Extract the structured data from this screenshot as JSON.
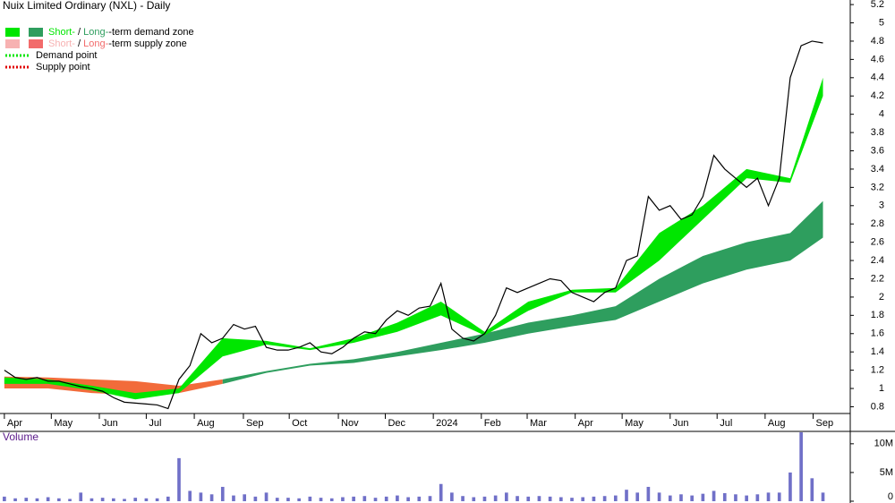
{
  "chart_data": [
    {
      "type": "price",
      "title": "Nuix Limited Ordinary (NXL) - Daily",
      "legend": [
        {
          "parts": [
            "Short-",
            " / ",
            "Long-",
            "-term demand zone"
          ],
          "colors": [
            "#00e600",
            "#2e9e5e"
          ]
        },
        {
          "parts": [
            "Short-",
            " / ",
            "Long-",
            "-term supply zone"
          ],
          "colors": [
            "#f7b2b2",
            "#f26b6b"
          ]
        },
        {
          "parts": [
            "Demand point"
          ],
          "colors": [
            "#00e600"
          ]
        },
        {
          "parts": [
            "Supply point"
          ],
          "colors": [
            "#e00000"
          ]
        }
      ],
      "x": [
        0,
        1,
        2,
        3,
        4,
        5,
        6,
        7,
        8,
        9,
        10,
        11,
        12,
        13,
        14,
        15,
        16,
        17,
        18,
        19,
        20,
        21,
        22,
        23,
        24,
        25,
        26,
        27,
        28,
        29,
        30,
        31,
        32,
        33,
        34,
        35,
        36,
        37,
        38,
        39,
        40,
        41,
        42,
        43,
        44,
        45,
        46,
        47,
        48,
        49,
        50,
        51,
        52,
        53,
        54,
        55,
        56,
        57,
        58,
        59,
        60,
        61,
        62,
        63,
        64,
        65,
        66,
        67,
        68,
        69,
        70,
        71,
        72,
        73,
        74,
        75
      ],
      "series": [
        {
          "name": "NXL",
          "color": "#000000",
          "values": [
            1.2,
            1.12,
            1.1,
            1.12,
            1.08,
            1.08,
            1.05,
            1.02,
            1.0,
            0.97,
            0.9,
            0.85,
            0.84,
            0.83,
            0.82,
            0.78,
            1.1,
            1.25,
            1.6,
            1.5,
            1.55,
            1.7,
            1.65,
            1.68,
            1.45,
            1.42,
            1.42,
            1.45,
            1.5,
            1.4,
            1.38,
            1.45,
            1.55,
            1.62,
            1.6,
            1.75,
            1.85,
            1.8,
            1.88,
            1.9,
            2.15,
            1.65,
            1.55,
            1.52,
            1.6,
            1.8,
            2.1,
            2.05,
            2.1,
            2.15,
            2.2,
            2.18,
            2.05,
            2.0,
            1.95,
            2.05,
            2.1,
            2.4,
            2.45,
            3.1,
            2.95,
            3.0,
            2.85,
            2.9,
            3.1,
            3.55,
            3.4,
            3.3,
            3.2,
            3.3,
            3.0,
            3.3,
            4.4,
            4.75,
            4.8,
            4.78
          ]
        }
      ],
      "zone_x": [
        0,
        4,
        8,
        12,
        16,
        20,
        24,
        28,
        32,
        36,
        40,
        44,
        48,
        52,
        56,
        60,
        64,
        68,
        72,
        75
      ],
      "zones": [
        {
          "color": "#f26b3a",
          "lower": [
            1.0,
            1.0,
            0.95,
            0.93,
            0.95,
            1.05,
            null,
            null,
            null,
            null,
            null,
            null,
            null,
            null,
            null,
            null,
            null,
            null,
            null,
            null
          ],
          "upper": [
            1.13,
            1.12,
            1.1,
            1.08,
            1.03,
            1.1,
            null,
            null,
            null,
            null,
            null,
            null,
            null,
            null,
            null,
            null,
            null,
            null,
            null,
            null
          ]
        },
        {
          "color": "#2e9e5e",
          "lower": [
            null,
            null,
            null,
            null,
            null,
            1.05,
            1.17,
            1.25,
            1.28,
            1.35,
            1.42,
            1.5,
            1.6,
            1.68,
            1.75,
            1.95,
            2.15,
            2.3,
            2.4,
            2.65
          ],
          "upper": [
            null,
            null,
            null,
            null,
            null,
            1.1,
            1.19,
            1.27,
            1.32,
            1.4,
            1.5,
            1.6,
            1.72,
            1.8,
            1.9,
            2.2,
            2.45,
            2.6,
            2.7,
            3.05
          ]
        },
        {
          "color": "#00e600",
          "lower": [
            1.05,
            1.05,
            0.98,
            0.88,
            0.95,
            1.35,
            1.48,
            1.42,
            1.5,
            1.62,
            1.8,
            1.58,
            1.85,
            2.05,
            2.05,
            2.4,
            2.85,
            3.3,
            3.25,
            4.2
          ],
          "upper": [
            1.12,
            1.1,
            1.03,
            0.95,
            1.0,
            1.55,
            1.52,
            1.44,
            1.55,
            1.72,
            1.95,
            1.62,
            1.95,
            2.08,
            2.1,
            2.7,
            3.0,
            3.4,
            3.3,
            4.4
          ]
        }
      ],
      "xlim": [
        -0.4,
        77.5
      ],
      "xticks": [
        {
          "value": 0,
          "label": "Apr"
        },
        {
          "value": 4.3,
          "label": "May"
        },
        {
          "value": 8.7,
          "label": "Jun"
        },
        {
          "value": 13,
          "label": "Jul"
        },
        {
          "value": 17.4,
          "label": "Aug"
        },
        {
          "value": 21.9,
          "label": "Sep"
        },
        {
          "value": 26.1,
          "label": "Oct"
        },
        {
          "value": 30.6,
          "label": "Nov"
        },
        {
          "value": 34.9,
          "label": "Dec"
        },
        {
          "value": 39.3,
          "label": "2024"
        },
        {
          "value": 43.7,
          "label": "Feb"
        },
        {
          "value": 47.9,
          "label": "Mar"
        },
        {
          "value": 52.3,
          "label": "Apr"
        },
        {
          "value": 56.6,
          "label": "May"
        },
        {
          "value": 61,
          "label": "Jun"
        },
        {
          "value": 65.3,
          "label": "Jul"
        },
        {
          "value": 69.7,
          "label": "Aug"
        },
        {
          "value": 74.1,
          "label": "Sep"
        }
      ],
      "ylim": [
        0.55,
        5.25
      ],
      "yticks": [
        0.8,
        1.0,
        1.2,
        1.4,
        1.6,
        1.8,
        2.0,
        2.2,
        2.4,
        2.6,
        2.8,
        3.0,
        3.2,
        3.4,
        3.6,
        3.8,
        4.0,
        4.2,
        4.4,
        4.6,
        4.8,
        5.0,
        5.2
      ]
    },
    {
      "type": "bar",
      "title": "Volume",
      "color": "#7070c8",
      "x": [
        0,
        1,
        2,
        3,
        4,
        5,
        6,
        7,
        8,
        9,
        10,
        11,
        12,
        13,
        14,
        15,
        16,
        17,
        18,
        19,
        20,
        21,
        22,
        23,
        24,
        25,
        26,
        27,
        28,
        29,
        30,
        31,
        32,
        33,
        34,
        35,
        36,
        37,
        38,
        39,
        40,
        41,
        42,
        43,
        44,
        45,
        46,
        47,
        48,
        49,
        50,
        51,
        52,
        53,
        54,
        55,
        56,
        57,
        58,
        59,
        60,
        61,
        62,
        63,
        64,
        65,
        66,
        67,
        68,
        69,
        70,
        71,
        72,
        73,
        74,
        75
      ],
      "values": [
        0.8,
        0.5,
        0.6,
        0.5,
        0.7,
        0.5,
        0.4,
        1.5,
        0.5,
        0.6,
        0.5,
        0.4,
        0.6,
        0.5,
        0.5,
        0.8,
        7.5,
        1.8,
        1.5,
        1.2,
        2.5,
        1.0,
        1.2,
        0.8,
        1.5,
        0.6,
        0.6,
        0.5,
        0.8,
        0.6,
        0.5,
        0.7,
        0.8,
        0.9,
        0.6,
        0.8,
        1.0,
        0.7,
        0.8,
        0.9,
        3.0,
        1.5,
        0.9,
        0.7,
        0.8,
        1.0,
        1.5,
        0.9,
        0.8,
        0.9,
        0.8,
        0.7,
        0.6,
        0.7,
        0.8,
        0.9,
        1.0,
        2.0,
        1.5,
        2.5,
        1.5,
        1.0,
        1.2,
        1.0,
        1.3,
        1.8,
        1.4,
        1.2,
        1.0,
        1.2,
        1.5,
        1.5,
        5.0,
        12.0,
        4.0,
        1.5
      ],
      "xlim": [
        -0.4,
        77.5
      ],
      "ylim": [
        0,
        12
      ],
      "yticks": [
        {
          "value": 0,
          "label": "0"
        },
        {
          "value": 5,
          "label": "5M"
        },
        {
          "value": 10,
          "label": "10M"
        }
      ]
    }
  ]
}
